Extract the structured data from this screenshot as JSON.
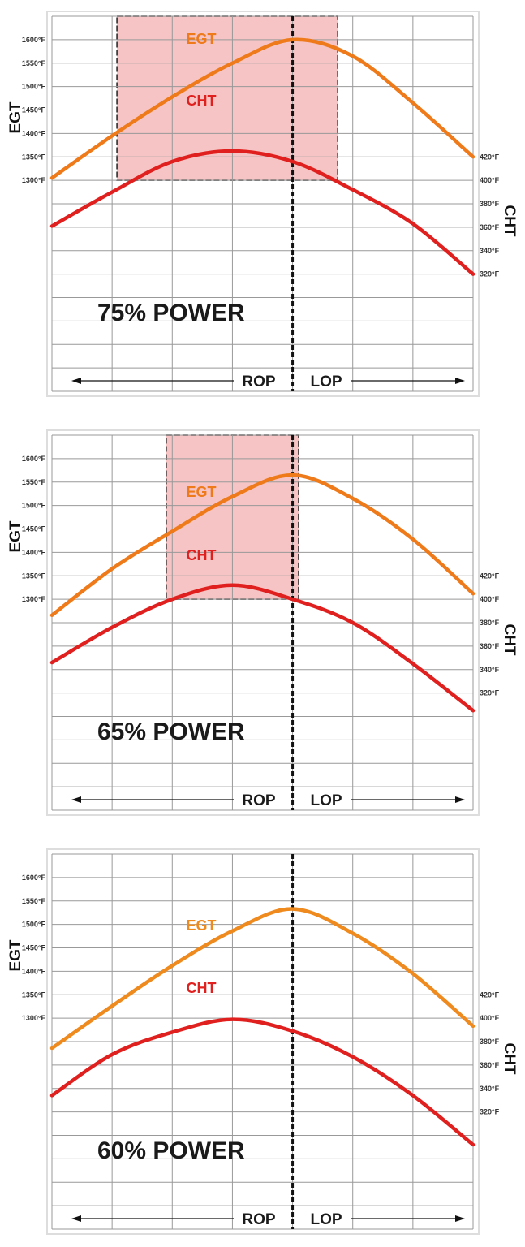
{
  "chart_data": [
    {
      "type": "line",
      "title": "75% POWER",
      "x": [
        0,
        1,
        2,
        3,
        4,
        5,
        6,
        7
      ],
      "ylabel_left": "EGT",
      "ylabel_right": "CHT",
      "egt_ticks": [
        "1600°F",
        "1550°F",
        "1500°F",
        "1450°F",
        "1400°F",
        "1350°F",
        "1300°F"
      ],
      "cht_ticks": [
        "420°F",
        "400°F",
        "380°F",
        "360°F",
        "340°F",
        "320°F"
      ],
      "egt_range": [
        1100,
        1650
      ],
      "cht_range": [
        320,
        420
      ],
      "series": [
        {
          "name": "EGT",
          "color": "#ee7a1a",
          "values": [
            1305,
            1395,
            1478,
            1550,
            1600,
            1565,
            1465,
            1350
          ]
        },
        {
          "name": "CHT",
          "color": "#e0201e",
          "values": [
            361,
            390,
            416,
            425,
            416,
            392,
            363,
            320
          ]
        }
      ],
      "peak_egt_x": 4,
      "shaded_region": {
        "x": [
          1.08,
          4.75
        ],
        "egt_min": 1300,
        "color": "#f6c4c4"
      },
      "rop_label": "ROP",
      "lop_label": "LOP",
      "grid": true
    },
    {
      "type": "line",
      "title": "65% POWER",
      "x": [
        0,
        1,
        2,
        3,
        4,
        5,
        6,
        7
      ],
      "ylabel_left": "EGT",
      "ylabel_right": "CHT",
      "egt_ticks": [
        "1600°F",
        "1550°F",
        "1500°F",
        "1450°F",
        "1400°F",
        "1350°F",
        "1300°F"
      ],
      "cht_ticks": [
        "420°F",
        "400°F",
        "380°F",
        "360°F",
        "340°F",
        "320°F"
      ],
      "egt_range": [
        1100,
        1650
      ],
      "cht_range": [
        320,
        420
      ],
      "series": [
        {
          "name": "EGT",
          "color": "#ee7a1a",
          "values": [
            1266,
            1365,
            1445,
            1519,
            1565,
            1515,
            1428,
            1312
          ]
        },
        {
          "name": "CHT",
          "color": "#e0201e",
          "values": [
            346,
            376,
            400,
            412,
            400,
            380,
            345,
            305
          ]
        }
      ],
      "peak_egt_x": 4,
      "shaded_region": {
        "x": [
          1.9,
          4.1
        ],
        "egt_min": 1300,
        "color": "#f6c4c4"
      },
      "rop_label": "ROP",
      "lop_label": "LOP",
      "grid": true
    },
    {
      "type": "line",
      "title": "60% POWER",
      "x": [
        0,
        1,
        2,
        3,
        4,
        5,
        6,
        7
      ],
      "ylabel_left": "EGT",
      "ylabel_right": "CHT",
      "egt_ticks": [
        "1600°F",
        "1550°F",
        "1500°F",
        "1450°F",
        "1400°F",
        "1350°F",
        "1300°F"
      ],
      "cht_ticks": [
        "420°F",
        "400°F",
        "380°F",
        "360°F",
        "340°F",
        "320°F"
      ],
      "egt_range": [
        1100,
        1650
      ],
      "cht_range": [
        320,
        420
      ],
      "series": [
        {
          "name": "EGT",
          "color": "#ee8a1e",
          "values": [
            1236,
            1326,
            1412,
            1486,
            1533,
            1481,
            1395,
            1283
          ]
        },
        {
          "name": "CHT",
          "color": "#e0201e",
          "values": [
            334,
            369,
            388,
            399,
            389,
            367,
            334,
            292
          ]
        }
      ],
      "peak_egt_x": 4,
      "shaded_region": null,
      "rop_label": "ROP",
      "lop_label": "LOP",
      "grid": true
    }
  ]
}
